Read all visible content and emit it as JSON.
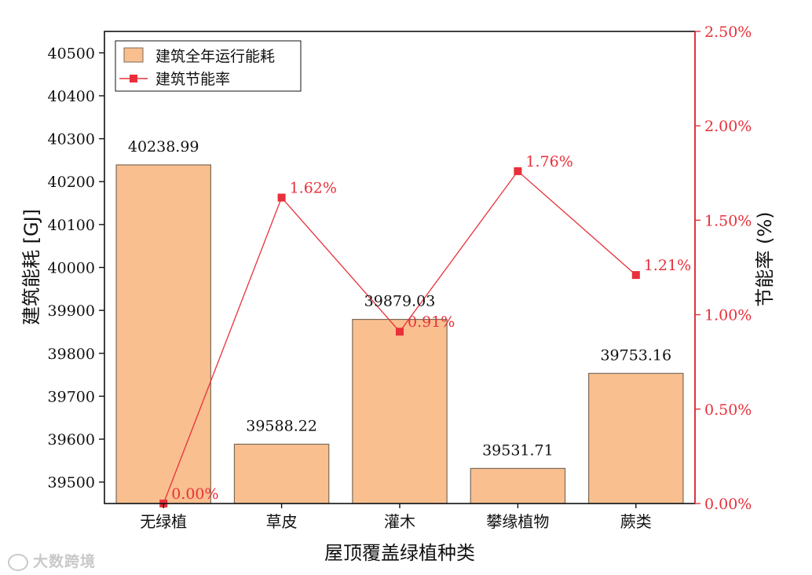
{
  "colors": {
    "bar_fill": "#f9bf8f",
    "bar_stroke": "#7a6a5a",
    "line": "#e8303a",
    "axis": "#111111"
  },
  "watermark": "大数跨境",
  "chart_data": {
    "type": "bar",
    "categories": [
      "无绿植",
      "草皮",
      "灌木",
      "攀缘植物",
      "蕨类"
    ],
    "series": [
      {
        "name": "建筑全年运行能耗",
        "type": "bar",
        "axis": "left",
        "values": [
          40238.99,
          39588.22,
          39879.03,
          39531.71,
          39753.16
        ],
        "labels": [
          "40238.99",
          "39588.22",
          "39879.03",
          "39531.71",
          "39753.16"
        ]
      },
      {
        "name": "建筑节能率",
        "type": "line",
        "axis": "right",
        "values": [
          0.0,
          1.62,
          0.91,
          1.76,
          1.21
        ],
        "labels": [
          "0.00%",
          "1.62%",
          "0.91%",
          "1.76%",
          "1.21%"
        ]
      }
    ],
    "xlabel": "屋顶覆盖绿植种类",
    "ylabel": "建筑能耗 [GJ]",
    "ylabel_right": "节能率 (%)",
    "ylim": [
      39450,
      40550
    ],
    "ylim_right": [
      0.0,
      2.5
    ],
    "yticks": [
      "39500",
      "39600",
      "39700",
      "39800",
      "39900",
      "40000",
      "40100",
      "40200",
      "40300",
      "40400",
      "40500"
    ],
    "yticks_right": [
      "0.00%",
      "0.50%",
      "1.00%",
      "1.50%",
      "2.00%",
      "2.50%"
    ],
    "legend_position": "top-left"
  }
}
